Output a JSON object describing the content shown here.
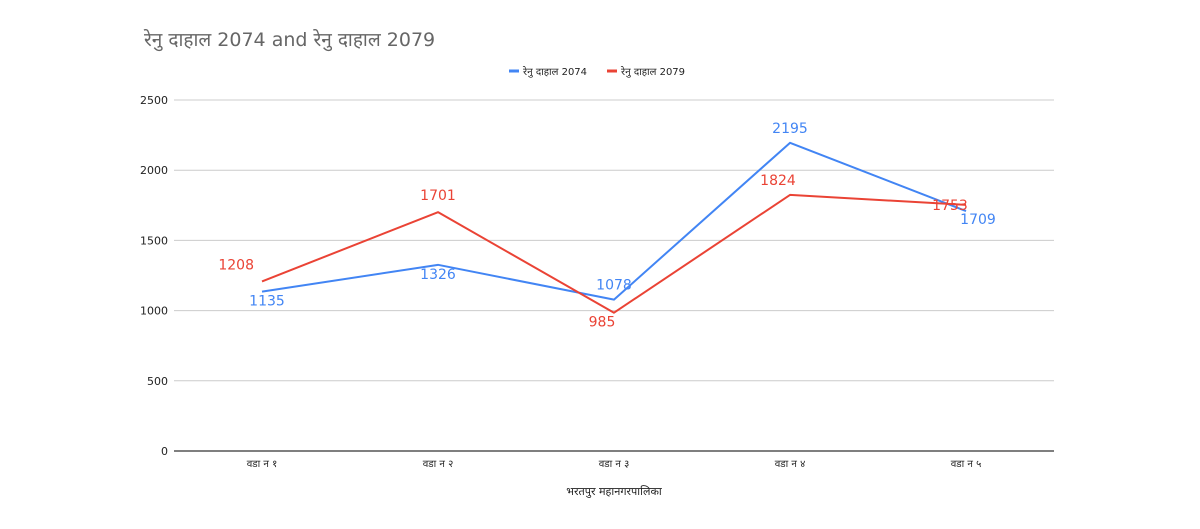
{
  "chart_data": {
    "type": "line",
    "title": "रेनु दाहाल 2074 and रेनु दाहाल 2079",
    "xlabel": "भरतपुर महानगरपालिका",
    "ylabel": "",
    "categories": [
      "वडा न १",
      "वडा न २",
      "वडा न ३",
      "वडा न ४",
      "वडा न ५"
    ],
    "ylim": [
      0,
      2500
    ],
    "yticks": [
      0,
      500,
      1000,
      1500,
      2000,
      2500
    ],
    "grid": true,
    "legend_position": "top-center",
    "series": [
      {
        "name": "रेनु दाहाल 2074",
        "color": "#4285f4",
        "values": [
          1135,
          1326,
          1078,
          2195,
          1709
        ]
      },
      {
        "name": "रेनु दाहाल 2079",
        "color": "#ea4335",
        "values": [
          1208,
          1701,
          985,
          1824,
          1753
        ]
      }
    ]
  }
}
